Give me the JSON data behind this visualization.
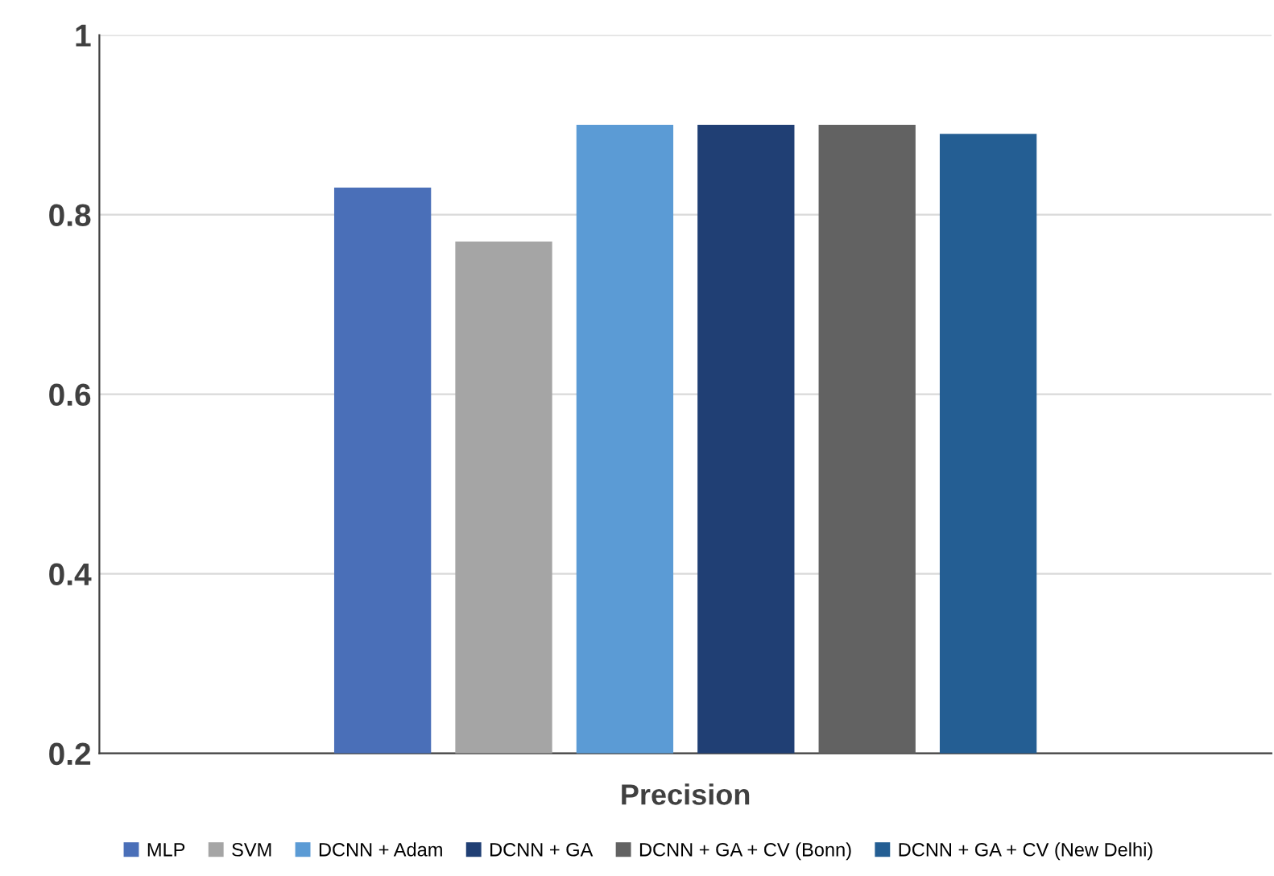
{
  "chart_data": {
    "type": "bar",
    "xlabel": "Precision",
    "categories": [
      null
    ],
    "series": [
      {
        "name": "MLP",
        "color": "#4a6fb8",
        "values": [
          0.83
        ]
      },
      {
        "name": "SVM",
        "color": "#a5a5a5",
        "values": [
          0.77
        ]
      },
      {
        "name": "DCNN + Adam",
        "color": "#5b9bd5",
        "values": [
          0.9
        ]
      },
      {
        "name": "DCNN + GA",
        "color": "#203f74",
        "values": [
          0.9
        ]
      },
      {
        "name": "DCNN + GA + CV (Bonn)",
        "color": "#626262",
        "values": [
          0.9
        ]
      },
      {
        "name": "DCNN + GA + CV (New Delhi)",
        "color": "#245e93",
        "values": [
          0.89
        ]
      }
    ],
    "ylim": [
      0.2,
      1
    ],
    "yticks": [
      0.2,
      0.4,
      0.6,
      0.8,
      1
    ],
    "grid": "y",
    "legend": "bottom"
  }
}
